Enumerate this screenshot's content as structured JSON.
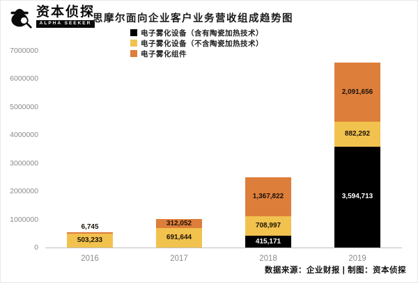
{
  "brand": {
    "name": "资本侦探",
    "tagline": "ALPHA SEEKER"
  },
  "title": "思摩尔面向企业客户业务营收组成趋势图",
  "footer": "数据来源：企业财报 | 制图：资本侦探",
  "chart_data": {
    "type": "bar",
    "stacked": true,
    "title": "思摩尔面向企业客户业务营收组成趋势图",
    "categories": [
      "2016",
      "2017",
      "2018",
      "2019"
    ],
    "series": [
      {
        "name": "电子雾化设备（含有陶瓷加热技术）",
        "color": "#000000",
        "values": [
          0,
          0,
          415171,
          3594713
        ]
      },
      {
        "name": "电子雾化设备（不含陶瓷加热技术）",
        "color": "#F2C24E",
        "values": [
          503233,
          691644,
          708997,
          882292
        ]
      },
      {
        "name": "电子雾化组件",
        "color": "#DD7E3B",
        "values": [
          6745,
          312052,
          1367822,
          2091656
        ]
      }
    ],
    "xlabel": "",
    "ylabel": "",
    "ylim": [
      0,
      7000000
    ],
    "ytick_step": 1000000,
    "grid": false,
    "legend_position": "top-left"
  }
}
